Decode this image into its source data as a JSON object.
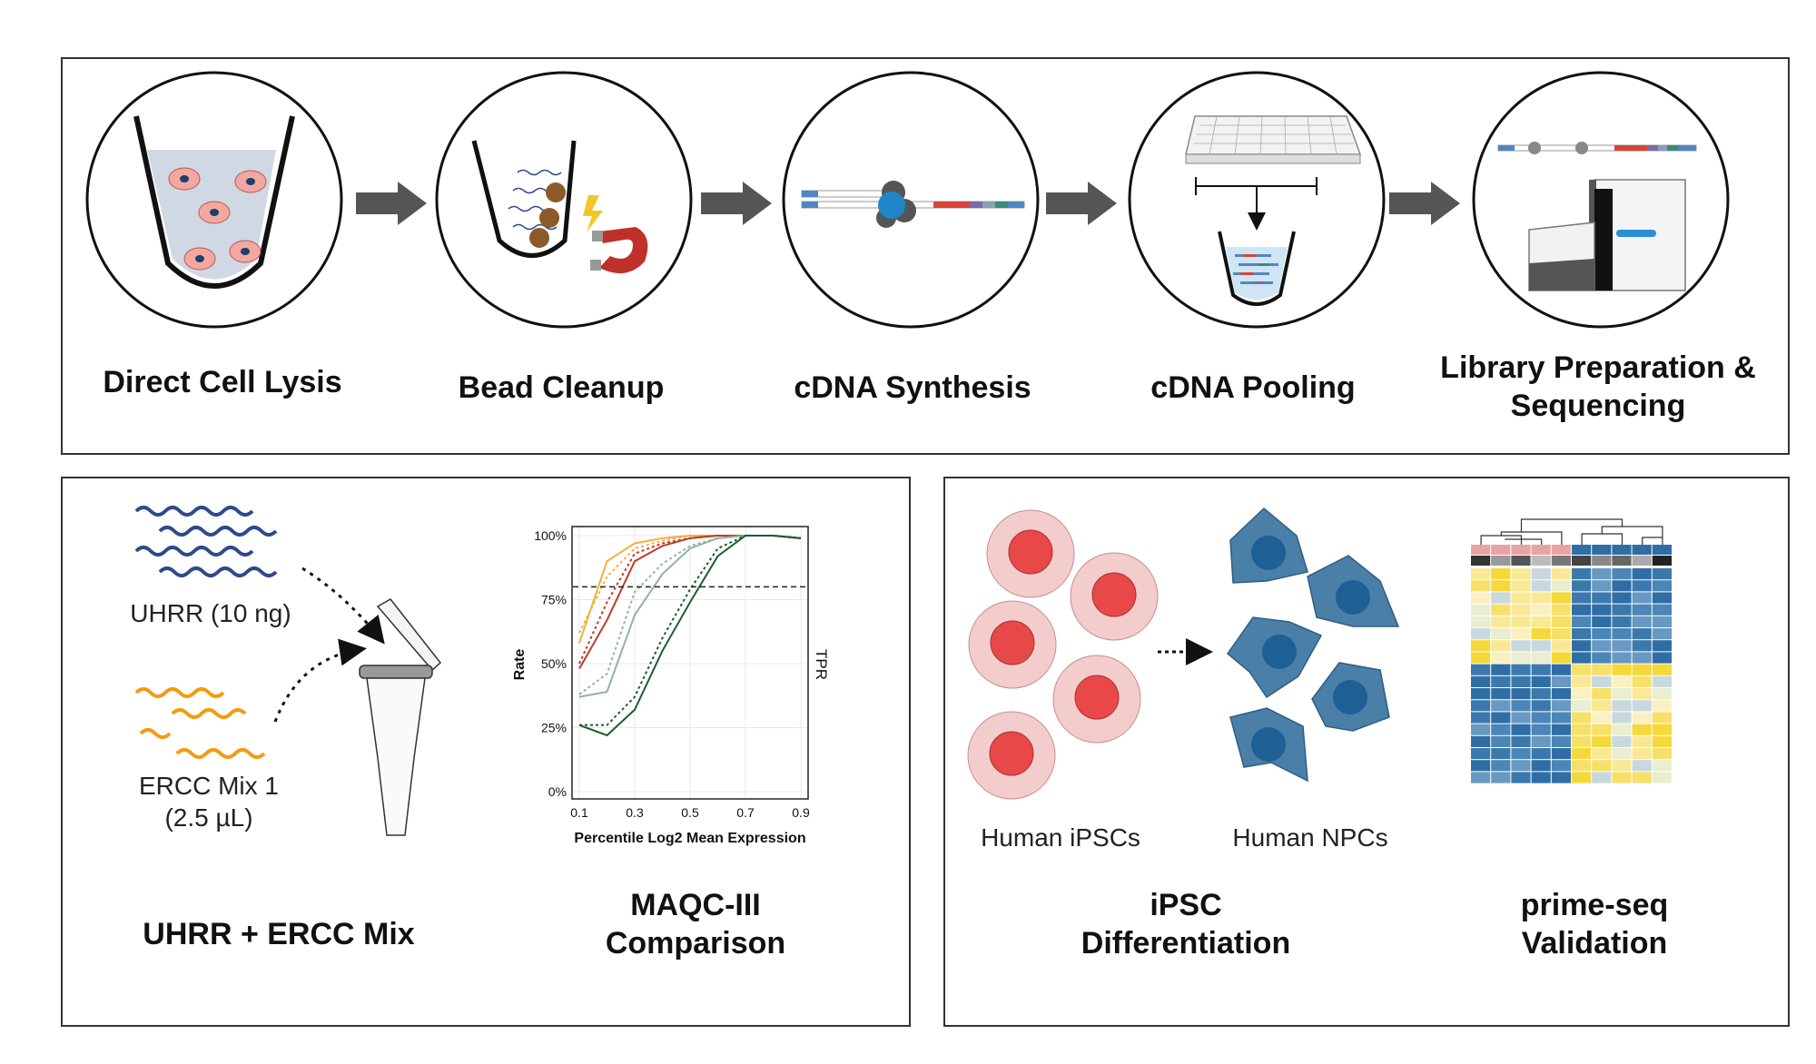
{
  "pipeline": {
    "steps": [
      {
        "label": "Direct Cell Lysis"
      },
      {
        "label": "Bead Cleanup"
      },
      {
        "label": "cDNA Synthesis"
      },
      {
        "label": "cDNA Pooling"
      },
      {
        "label_line1": "Library Preparation &",
        "label_line2": "Sequencing"
      }
    ]
  },
  "left_panel": {
    "uhrr_label": "UHRR (10 ng)",
    "ercc_label_line1": "ERCC Mix 1",
    "ercc_label_line2": "(2.5 µL)",
    "caption1": "UHRR + ERCC Mix",
    "caption2_line1": "MAQC-III",
    "caption2_line2": "Comparison"
  },
  "right_panel": {
    "ipsc_label": "Human iPSCs",
    "npc_label": "Human NPCs",
    "caption1_line1": "iPSC",
    "caption1_line2": "Differentiation",
    "caption2_line1": "prime-seq",
    "caption2_line2": "Validation"
  },
  "colors": {
    "arrow": "#555555",
    "uhrr_wave": "#2f4a8a",
    "ercc_wave": "#f39c12",
    "ipsc_outer": "#f3cccc",
    "ipsc_nucleus": "#e84848",
    "npc_body": "#4a7fa8",
    "npc_nucleus": "#1e5f96",
    "heat_blue": "#2f6ea5",
    "heat_yellow": "#f5d83a"
  },
  "chart_data": {
    "type": "line",
    "title": "",
    "xlabel": "Percentile Log2 Mean Expression",
    "ylabel": "Rate",
    "right_label": "TPR",
    "x_ticks": [
      "0.1",
      "0.3",
      "0.5",
      "0.7",
      "0.9"
    ],
    "y_ticks": [
      "0%",
      "25%",
      "50%",
      "75%",
      "100%"
    ],
    "xlim": [
      0.1,
      0.9
    ],
    "ylim": [
      0,
      1
    ],
    "threshold": 0.8,
    "x": [
      0.1,
      0.2,
      0.3,
      0.4,
      0.5,
      0.6,
      0.7,
      0.8,
      0.9
    ],
    "series": [
      {
        "color": "#f0b040",
        "dash": false,
        "values": [
          0.58,
          0.9,
          0.97,
          0.99,
          1.0,
          1.0,
          1.0,
          1.0,
          0.99
        ]
      },
      {
        "color": "#f0b040",
        "dash": true,
        "values": [
          0.62,
          0.84,
          0.95,
          0.98,
          1.0,
          1.0,
          1.0,
          1.0,
          0.99
        ]
      },
      {
        "color": "#c0392b",
        "dash": false,
        "values": [
          0.48,
          0.67,
          0.9,
          0.96,
          0.99,
          1.0,
          1.0,
          1.0,
          0.99
        ]
      },
      {
        "color": "#c0392b",
        "dash": true,
        "values": [
          0.5,
          0.74,
          0.93,
          0.97,
          0.99,
          1.0,
          1.0,
          1.0,
          0.99
        ]
      },
      {
        "color": "#8fb59a",
        "dash": false,
        "values": [
          0.37,
          0.39,
          0.69,
          0.85,
          0.95,
          0.99,
          1.0,
          1.0,
          0.99
        ]
      },
      {
        "color": "#8fb59a",
        "dash": true,
        "values": [
          0.38,
          0.46,
          0.78,
          0.89,
          0.96,
          0.99,
          1.0,
          1.0,
          0.99
        ]
      },
      {
        "color": "#1f5c2e",
        "dash": false,
        "values": [
          0.26,
          0.22,
          0.32,
          0.55,
          0.74,
          0.92,
          1.0,
          1.0,
          0.99
        ]
      },
      {
        "color": "#1f5c2e",
        "dash": true,
        "values": [
          0.26,
          0.26,
          0.37,
          0.6,
          0.79,
          0.95,
          1.0,
          1.0,
          0.99
        ]
      }
    ]
  }
}
